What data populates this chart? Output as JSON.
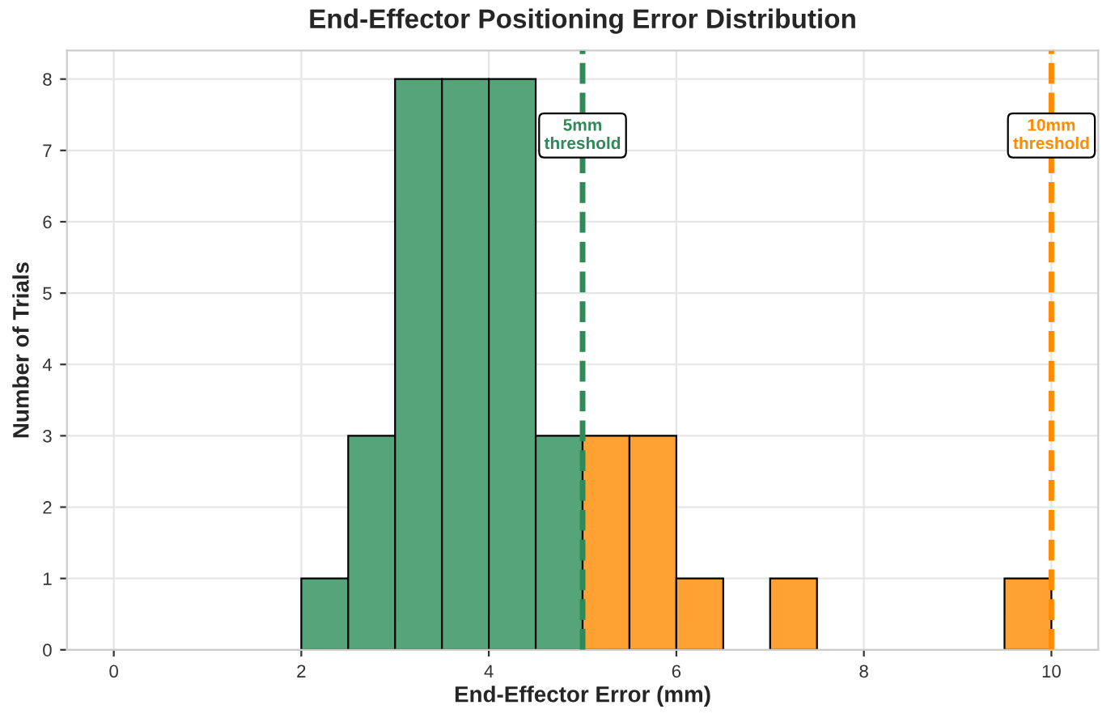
{
  "chart_data": {
    "type": "histogram",
    "title": "End-Effector Positioning Error Distribution",
    "xlabel": "End-Effector Error (mm)",
    "ylabel": "Number of Trials",
    "bins": [
      2.0,
      2.5,
      3.0,
      3.5,
      4.0,
      4.5,
      5.0,
      5.5,
      6.0,
      6.5,
      7.0,
      7.5,
      8.0,
      8.5,
      9.0,
      9.5,
      10.0
    ],
    "values": [
      1,
      3,
      8,
      8,
      8,
      3,
      3,
      3,
      1,
      0,
      1,
      0,
      0,
      0,
      0,
      1
    ],
    "colors": [
      "#56a57a",
      "#56a57a",
      "#56a57a",
      "#56a57a",
      "#56a57a",
      "#56a57a",
      "#ffa233",
      "#ffa233",
      "#ffa233",
      "#ffa233",
      "#ffa233",
      "#ffa233",
      "#ffa233",
      "#ffa233",
      "#ffa233",
      "#ffa233"
    ],
    "xlim": [
      -0.5,
      10.5
    ],
    "ylim": [
      0,
      8.4
    ],
    "xticks": [
      0,
      2,
      4,
      6,
      8,
      10
    ],
    "yticks": [
      0,
      1,
      2,
      3,
      4,
      5,
      6,
      7,
      8
    ],
    "ref_lines": [
      {
        "axis": "x",
        "value": 5,
        "label": "5mm\nthreshold",
        "color": "#2e8b57",
        "line_style": "dashed"
      },
      {
        "axis": "x",
        "value": 10,
        "label": "10mm\nthreshold",
        "color": "#ff8c00",
        "line_style": "dashed"
      }
    ],
    "grid": true
  }
}
